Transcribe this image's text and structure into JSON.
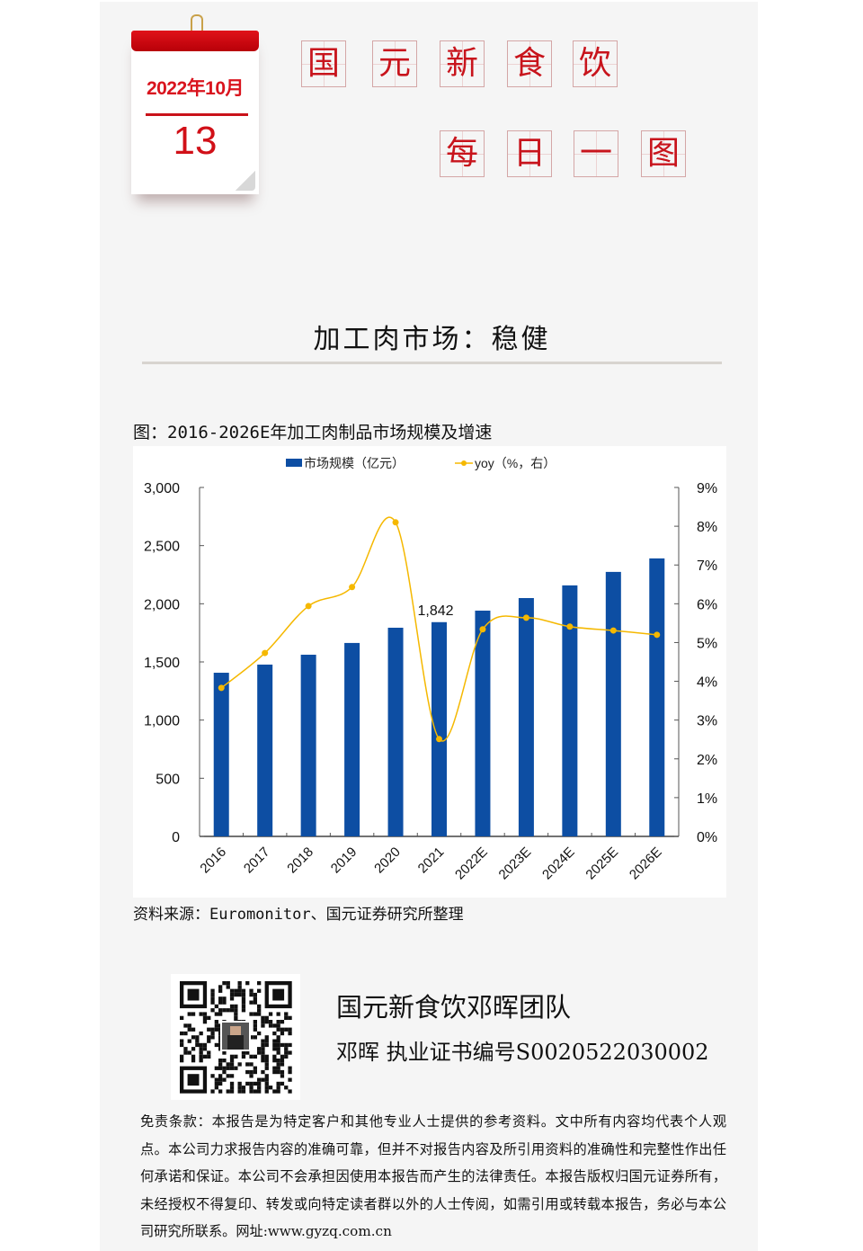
{
  "calendar": {
    "year_month": "2022年10月",
    "day": "13"
  },
  "header": {
    "line1": [
      "国",
      "元",
      "新",
      "食",
      "饮"
    ],
    "line2": [
      "每",
      "日",
      "一",
      "图"
    ]
  },
  "heading": "加工肉市场：稳健",
  "figure_title": "图：2016-2026E年加工肉制品市场规模及增速",
  "source": "资料来源：Euromonitor、国元证券研究所整理",
  "colors": {
    "bar": "#0d4ea3",
    "line": "#f5b800",
    "title_red": "#c8141c",
    "panel_bg": "#f5f5f5"
  },
  "chart_data": {
    "type": "bar",
    "title": "2016-2026E年加工肉制品市场规模及增速",
    "categories": [
      "2016",
      "2017",
      "2018",
      "2019",
      "2020",
      "2021",
      "2022E",
      "2023E",
      "2024E",
      "2025E",
      "2026E"
    ],
    "series": [
      {
        "name": "市场规模（亿元）",
        "type": "bar",
        "axis": "left",
        "values": [
          1407,
          1477,
          1562,
          1663,
          1794,
          1842,
          1941,
          2049,
          2158,
          2274,
          2390
        ]
      },
      {
        "name": "yoy（%，右）",
        "type": "line",
        "axis": "right",
        "values": [
          3.83,
          4.73,
          5.94,
          6.43,
          8.1,
          2.51,
          5.34,
          5.64,
          5.41,
          5.31,
          5.2
        ]
      }
    ],
    "annotations": [
      {
        "category": "2021",
        "text": "1,842"
      }
    ],
    "xlabel": "",
    "ylabel": "",
    "ylim": [
      0,
      3000
    ],
    "y_ticks": [
      "0",
      "500",
      "1,000",
      "1,500",
      "2,000",
      "2,500",
      "3,000"
    ],
    "y2lim": [
      0,
      9
    ],
    "y2_ticks": [
      "0%",
      "1%",
      "2%",
      "3%",
      "4%",
      "5%",
      "6%",
      "7%",
      "8%",
      "9%"
    ],
    "legend_position": "top",
    "grid": false
  },
  "footer": {
    "team": "国元新食饮邓晖团队",
    "cert": "邓晖  执业证书编号S0020522030002",
    "disclaimer": "免责条款：本报告是为特定客户和其他专业人士提供的参考资料。文中所有内容均代表个人观点。本公司力求报告内容的准确可靠，但并不对报告内容及所引用资料的准确性和完整性作出任何承诺和保证。本公司不会承担因使用本报告而产生的法律责任。本报告版权归国元证券所有，未经授权不得复印、转发或向特定读者群以外的人士传阅，如需引用或转载本报告，务必与本公司研究所联系。网址:www.gyzq.com.cn"
  }
}
